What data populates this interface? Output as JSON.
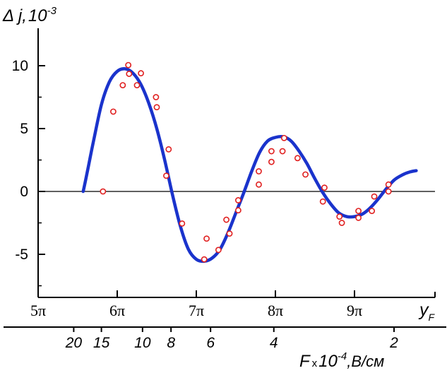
{
  "chart_data": {
    "type": "scatter",
    "title": "",
    "ylabel": "Δ j, 10⁻³",
    "ylabel_parts": {
      "symbol": "Δ j",
      "sep": ",",
      "base": "10",
      "exp": "-3"
    },
    "x_axis_label": {
      "symbol": "y",
      "sub": "F"
    },
    "secondary_x_label": {
      "symbol": "F",
      "mult": "x",
      "base": "10",
      "exp": "-4",
      "unit": ",В/см"
    },
    "ylim": [
      -8.5,
      13.5
    ],
    "xlim": [
      5,
      9.9
    ],
    "y_ticks": [
      {
        "value": 10,
        "label": "10"
      },
      {
        "value": 5,
        "label": "5"
      },
      {
        "value": 0,
        "label": "0"
      },
      {
        "value": -5,
        "label": "-5"
      }
    ],
    "x_ticks": [
      {
        "value": 5,
        "label": "5π"
      },
      {
        "value": 6,
        "label": "6π"
      },
      {
        "value": 7,
        "label": "7π"
      },
      {
        "value": 8,
        "label": "8π"
      },
      {
        "value": 9,
        "label": "9π"
      }
    ],
    "secondary_x_ticks": [
      {
        "value": 5.45,
        "label": "20"
      },
      {
        "value": 5.8,
        "label": "15"
      },
      {
        "value": 6.32,
        "label": "10"
      },
      {
        "value": 6.68,
        "label": "8"
      },
      {
        "value": 7.18,
        "label": "6"
      },
      {
        "value": 7.98,
        "label": "4"
      },
      {
        "value": 9.5,
        "label": "2"
      }
    ],
    "series": [
      {
        "kind": "line",
        "color": "#1a33cc",
        "points": [
          [
            5.57,
            0
          ],
          [
            5.62,
            1.5
          ],
          [
            5.7,
            4
          ],
          [
            5.8,
            6.9
          ],
          [
            5.9,
            8.7
          ],
          [
            6.0,
            9.55
          ],
          [
            6.1,
            9.75
          ],
          [
            6.2,
            9.4
          ],
          [
            6.3,
            8.5
          ],
          [
            6.4,
            7.0
          ],
          [
            6.5,
            5.0
          ],
          [
            6.6,
            2.5
          ],
          [
            6.7,
            -0.3
          ],
          [
            6.8,
            -2.8
          ],
          [
            6.9,
            -4.6
          ],
          [
            7.0,
            -5.4
          ],
          [
            7.1,
            -5.55
          ],
          [
            7.2,
            -5.3
          ],
          [
            7.3,
            -4.6
          ],
          [
            7.4,
            -3.3
          ],
          [
            7.5,
            -1.7
          ],
          [
            7.6,
            -0.1
          ],
          [
            7.7,
            1.6
          ],
          [
            7.8,
            3.1
          ],
          [
            7.9,
            4.0
          ],
          [
            8.0,
            4.3
          ],
          [
            8.1,
            4.35
          ],
          [
            8.2,
            4.0
          ],
          [
            8.3,
            3.2
          ],
          [
            8.4,
            2.2
          ],
          [
            8.5,
            1.0
          ],
          [
            8.6,
            -0.1
          ],
          [
            8.7,
            -1.0
          ],
          [
            8.8,
            -1.7
          ],
          [
            8.9,
            -2.0
          ],
          [
            9.0,
            -2.0
          ],
          [
            9.1,
            -1.8
          ],
          [
            9.2,
            -1.3
          ],
          [
            9.3,
            -0.6
          ],
          [
            9.4,
            0.2
          ],
          [
            9.5,
            0.9
          ],
          [
            9.6,
            1.3
          ],
          [
            9.7,
            1.55
          ],
          [
            9.78,
            1.65
          ]
        ]
      },
      {
        "kind": "scatter",
        "color": "#e02020",
        "points": [
          [
            5.82,
            0
          ],
          [
            5.95,
            6.35
          ],
          [
            6.07,
            8.45
          ],
          [
            6.14,
            10.05
          ],
          [
            6.15,
            9.35
          ],
          [
            6.25,
            8.45
          ],
          [
            6.3,
            9.4
          ],
          [
            6.49,
            7.5
          ],
          [
            6.5,
            6.7
          ],
          [
            6.62,
            1.25
          ],
          [
            6.65,
            3.35
          ],
          [
            6.82,
            -2.55
          ],
          [
            7.1,
            -5.4
          ],
          [
            7.13,
            -3.75
          ],
          [
            7.28,
            -4.65
          ],
          [
            7.38,
            -2.25
          ],
          [
            7.42,
            -3.35
          ],
          [
            7.53,
            -0.7
          ],
          [
            7.53,
            -1.5
          ],
          [
            7.79,
            1.6
          ],
          [
            7.79,
            0.55
          ],
          [
            7.95,
            3.2
          ],
          [
            7.95,
            2.35
          ],
          [
            8.09,
            3.2
          ],
          [
            8.11,
            4.25
          ],
          [
            8.28,
            2.65
          ],
          [
            8.38,
            1.35
          ],
          [
            8.6,
            -0.8
          ],
          [
            8.62,
            0.3
          ],
          [
            8.81,
            -2.0
          ],
          [
            8.84,
            -2.5
          ],
          [
            9.05,
            -1.55
          ],
          [
            9.05,
            -2.1
          ],
          [
            9.22,
            -1.55
          ],
          [
            9.25,
            -0.4
          ],
          [
            9.43,
            0.55
          ],
          [
            9.43,
            0.0
          ]
        ]
      }
    ]
  }
}
